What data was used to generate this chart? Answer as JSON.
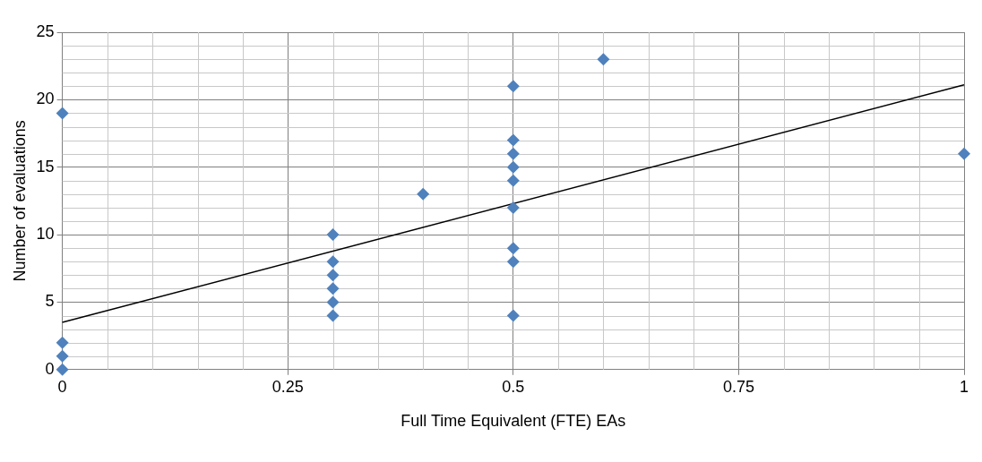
{
  "chart_data": {
    "type": "scatter",
    "xlabel": "Full Time Equivalent (FTE) EAs",
    "ylabel": "Number of evaluations",
    "series": [
      {
        "color": "#4f81bd",
        "marker": "diamond",
        "x": [
          0,
          0,
          0,
          0,
          0.3,
          0.3,
          0.3,
          0.3,
          0.3,
          0.3,
          0.4,
          0.5,
          0.5,
          0.5,
          0.5,
          0.5,
          0.5,
          0.5,
          0.5,
          0.5,
          0.6,
          1
        ],
        "values": [
          19,
          2,
          1,
          0,
          10,
          8,
          7,
          6,
          5,
          4,
          13,
          21,
          17,
          16,
          15,
          14,
          12,
          9,
          8,
          4,
          23,
          16
        ]
      },
      {
        "type": "line",
        "color": "#000000",
        "marker": "none",
        "x": [
          0,
          1
        ],
        "values": [
          3.5,
          21.1
        ]
      }
    ],
    "xlim": [
      0,
      1
    ],
    "xticks": [
      0,
      0.25,
      0.5,
      0.75,
      1
    ],
    "ylim": [
      0,
      25
    ],
    "yticks": [
      0,
      5,
      10,
      15,
      20,
      25
    ],
    "grid": true,
    "legend": false
  }
}
